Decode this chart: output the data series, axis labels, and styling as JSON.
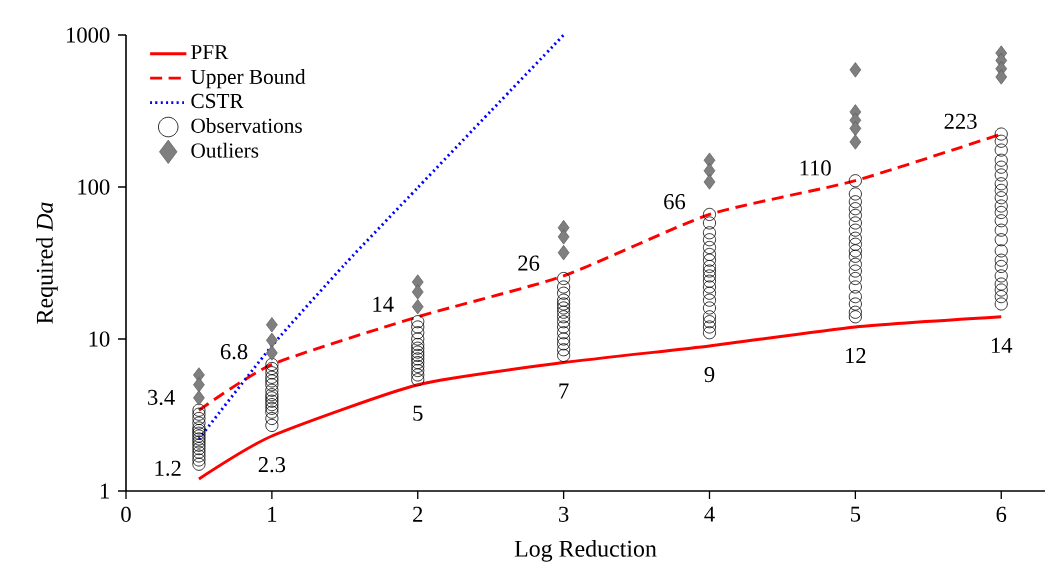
{
  "chart_data": {
    "type": "line",
    "xlabel": "Log Reduction",
    "ylabel": "Required *Da*",
    "log": "y",
    "xlim": [
      0,
      6.3
    ],
    "ylim": [
      1,
      1000
    ],
    "xticks": [
      0,
      1,
      2,
      3,
      4,
      5,
      6
    ],
    "yticks": [
      1,
      10,
      100,
      1000
    ],
    "grid": false,
    "legend": "top left",
    "series": [
      {
        "name": "PFR",
        "color": "#ff0000",
        "line_style": "solid",
        "marker": "none",
        "x": [
          0.5,
          1,
          2,
          3,
          4,
          5,
          6
        ],
        "values": [
          1.2,
          2.3,
          5,
          7,
          9,
          12,
          14
        ],
        "value_labels": [
          "1.2",
          "2.3",
          "5",
          "7",
          "9",
          "12",
          "14"
        ]
      },
      {
        "name": "Upper Bound",
        "color": "#ff0000",
        "line_style": "dashed",
        "marker": "none",
        "x": [
          0.5,
          1,
          2,
          3,
          4,
          5,
          6
        ],
        "values": [
          3.4,
          6.8,
          14,
          26,
          66,
          110,
          223
        ],
        "value_labels": [
          "3.4",
          "6.8",
          "14",
          "26",
          "66",
          "110",
          "223"
        ]
      },
      {
        "name": "CSTR",
        "color": "#0000ff",
        "line_style": "dotted",
        "marker": "none",
        "x": [
          0.5,
          1,
          1.5,
          2,
          2.5,
          3
        ],
        "values": [
          2.2,
          9,
          31,
          99,
          315,
          999
        ]
      },
      {
        "name": "Observations",
        "type": "scatter",
        "color": "#000000",
        "marker": "circle",
        "x": [
          0.5,
          0.5,
          0.5,
          0.5,
          0.5,
          0.5,
          0.5,
          0.5,
          0.5,
          0.5,
          0.5,
          0.5,
          0.5,
          0.5,
          0.5,
          0.5,
          1,
          1,
          1,
          1,
          1,
          1,
          1,
          1,
          1,
          1,
          1,
          1,
          1,
          1,
          1,
          2,
          2,
          2,
          2,
          2,
          2,
          2,
          2,
          2,
          2,
          2,
          2,
          2,
          2,
          3,
          3,
          3,
          3,
          3,
          3,
          3,
          3,
          3,
          3,
          3,
          3,
          3,
          3,
          3,
          4,
          4,
          4,
          4,
          4,
          4,
          4,
          4,
          4,
          4,
          4,
          4,
          4,
          4,
          4,
          4,
          4,
          4,
          4,
          5,
          5,
          5,
          5,
          5,
          5,
          5,
          5,
          5,
          5,
          5,
          5,
          5,
          5,
          5,
          5,
          5,
          5,
          5,
          6,
          6,
          6,
          6,
          6,
          6,
          6,
          6,
          6,
          6,
          6,
          6,
          6,
          6,
          6,
          6,
          6,
          6,
          6,
          6,
          6,
          6
        ],
        "values": [
          1.5,
          1.6,
          1.7,
          1.8,
          1.9,
          2.0,
          2.1,
          2.2,
          2.3,
          2.4,
          2.5,
          2.6,
          2.8,
          3.0,
          3.2,
          3.4,
          2.7,
          3.0,
          3.3,
          3.5,
          3.7,
          3.9,
          4.1,
          4.3,
          4.6,
          5.0,
          5.3,
          5.6,
          6.0,
          6.4,
          6.8,
          5.4,
          5.8,
          6.2,
          6.6,
          7.0,
          7.4,
          7.8,
          8.2,
          8.7,
          9.2,
          10,
          11,
          12,
          13,
          7.8,
          8.5,
          9.3,
          10,
          11,
          12,
          13,
          14,
          15,
          16,
          17,
          18,
          20,
          22,
          25,
          11,
          12,
          13,
          14,
          16,
          18,
          20,
          22,
          24,
          26,
          28,
          30,
          33,
          36,
          40,
          45,
          50,
          58,
          66,
          14,
          15,
          17,
          19,
          22,
          25,
          28,
          31,
          35,
          38,
          42,
          46,
          52,
          58,
          65,
          72,
          80,
          90,
          110,
          17,
          19,
          21,
          23,
          26,
          30,
          33,
          38,
          45,
          52,
          60,
          68,
          75,
          85,
          95,
          105,
          120,
          135,
          150,
          175,
          200,
          223
        ]
      },
      {
        "name": "Outliers",
        "type": "scatter",
        "color": "#7f7f7f",
        "marker": "diamond",
        "x": [
          0.5,
          0.5,
          0.5,
          1,
          1,
          1,
          2,
          2,
          2,
          3,
          3,
          3,
          4,
          4,
          4,
          5,
          5,
          5,
          5,
          5,
          6,
          6,
          6,
          6
        ],
        "values": [
          5.8,
          5.0,
          4.1,
          12.4,
          9.8,
          8.1,
          23.7,
          20.4,
          16.3,
          54,
          47,
          37,
          150,
          128,
          108,
          590,
          312,
          275,
          243,
          198,
          760,
          680,
          600,
          530
        ]
      }
    ]
  }
}
